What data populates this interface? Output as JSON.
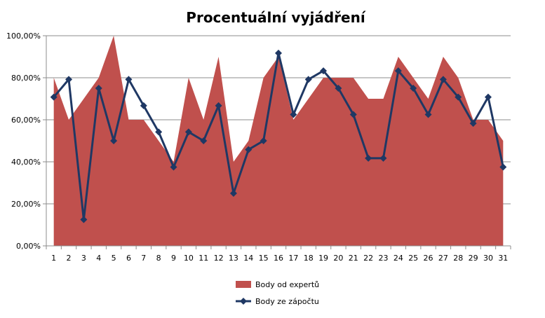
{
  "chart_data": {
    "type": "area",
    "title": "Procentuální vyjádření",
    "categories": [
      "1",
      "2",
      "3",
      "4",
      "5",
      "6",
      "7",
      "8",
      "9",
      "10",
      "11",
      "12",
      "13",
      "14",
      "15",
      "16",
      "17",
      "18",
      "19",
      "20",
      "21",
      "22",
      "23",
      "24",
      "25",
      "26",
      "27",
      "28",
      "29",
      "30",
      "31"
    ],
    "ylim": [
      0,
      1
    ],
    "yticks": [
      0,
      0.2,
      0.4,
      0.6,
      0.8,
      1.0
    ],
    "ytick_labels": [
      "0,00%",
      "20,00%",
      "40,00%",
      "60,00%",
      "80,00%",
      "100,00%"
    ],
    "grid": true,
    "legend_position": "bottom",
    "series": [
      {
        "name": "Body od expertů",
        "type": "area",
        "color": "#c0504d",
        "values": [
          0.8,
          0.6,
          0.7,
          0.8,
          1.0,
          0.6,
          0.6,
          0.5,
          0.4,
          0.8,
          0.6,
          0.9,
          0.4,
          0.5,
          0.8,
          0.9,
          0.6,
          0.7,
          0.8,
          0.8,
          0.8,
          0.7,
          0.7,
          0.9,
          0.8,
          0.7,
          0.9,
          0.8,
          0.6,
          0.6,
          0.5
        ]
      },
      {
        "name": "Body ze zápočtu",
        "type": "line",
        "color": "#1f3864",
        "marker": "diamond",
        "values": [
          0.708,
          0.792,
          0.125,
          0.75,
          0.5,
          0.792,
          0.667,
          0.542,
          0.375,
          0.542,
          0.5,
          0.667,
          0.25,
          0.458,
          0.5,
          0.917,
          0.625,
          0.792,
          0.833,
          0.75,
          0.625,
          0.417,
          0.417,
          0.833,
          0.75,
          0.625,
          0.792,
          0.708,
          0.583,
          0.708,
          0.375
        ]
      }
    ]
  }
}
